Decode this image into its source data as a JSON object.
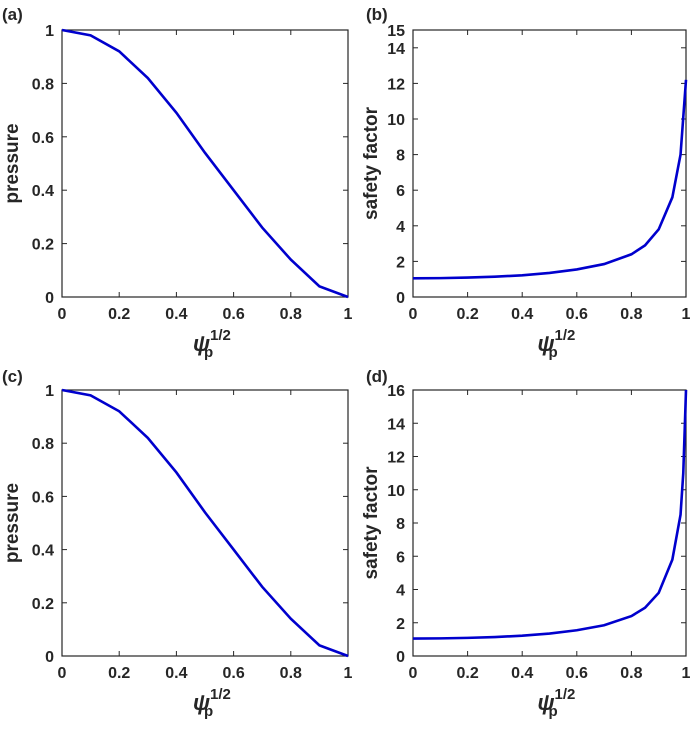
{
  "chart_data": [
    {
      "panel_label": "(a)",
      "type": "line",
      "ylabel": "pressure",
      "xlabel": "ψ",
      "xlabel_sub": "p",
      "xlabel_sup": "1/2",
      "xlim": [
        0,
        1
      ],
      "ylim": [
        0,
        1
      ],
      "xticks": [
        "0",
        "0.2",
        "0.4",
        "0.6",
        "0.8",
        "1"
      ],
      "yticks": [
        "0",
        "0.2",
        "0.4",
        "0.6",
        "0.8",
        "1"
      ],
      "x": [
        0,
        0.1,
        0.2,
        0.3,
        0.4,
        0.5,
        0.6,
        0.7,
        0.8,
        0.9,
        1.0
      ],
      "y": [
        1.0,
        0.98,
        0.92,
        0.82,
        0.69,
        0.54,
        0.4,
        0.26,
        0.14,
        0.04,
        0.0
      ],
      "color": "#0000cd"
    },
    {
      "panel_label": "(b)",
      "type": "line",
      "ylabel": "safety factor",
      "xlabel": "ψ",
      "xlabel_sub": "p",
      "xlabel_sup": "1/2",
      "xlim": [
        0,
        1
      ],
      "ylim": [
        0,
        15
      ],
      "xticks": [
        "0",
        "0.2",
        "0.4",
        "0.6",
        "0.8",
        "1"
      ],
      "yticks": [
        "0",
        "2",
        "4",
        "6",
        "8",
        "10",
        "12",
        "14",
        "15"
      ],
      "x": [
        0,
        0.1,
        0.2,
        0.3,
        0.4,
        0.5,
        0.6,
        0.7,
        0.8,
        0.85,
        0.9,
        0.95,
        0.98,
        1.0
      ],
      "y": [
        1.05,
        1.06,
        1.09,
        1.14,
        1.22,
        1.35,
        1.55,
        1.85,
        2.4,
        2.9,
        3.8,
        5.6,
        8.0,
        12.2
      ],
      "color": "#0000cd"
    },
    {
      "panel_label": "(c)",
      "type": "line",
      "ylabel": "pressure",
      "xlabel": "ψ",
      "xlabel_sub": "p",
      "xlabel_sup": "1/2",
      "xlim": [
        0,
        1
      ],
      "ylim": [
        0,
        1
      ],
      "xticks": [
        "0",
        "0.2",
        "0.4",
        "0.6",
        "0.8",
        "1"
      ],
      "yticks": [
        "0",
        "0.2",
        "0.4",
        "0.6",
        "0.8",
        "1"
      ],
      "x": [
        0,
        0.1,
        0.2,
        0.3,
        0.4,
        0.5,
        0.6,
        0.7,
        0.8,
        0.9,
        1.0
      ],
      "y": [
        1.0,
        0.98,
        0.92,
        0.82,
        0.69,
        0.54,
        0.4,
        0.26,
        0.14,
        0.04,
        0.0
      ],
      "color": "#0000cd"
    },
    {
      "panel_label": "(d)",
      "type": "line",
      "ylabel": "safety factor",
      "xlabel": "ψ",
      "xlabel_sub": "p",
      "xlabel_sup": "1/2",
      "xlim": [
        0,
        1
      ],
      "ylim": [
        0,
        16
      ],
      "xticks": [
        "0",
        "0.2",
        "0.4",
        "0.6",
        "0.8",
        "1"
      ],
      "yticks": [
        "0",
        "2",
        "4",
        "6",
        "8",
        "10",
        "12",
        "14",
        "16"
      ],
      "x": [
        0,
        0.1,
        0.2,
        0.3,
        0.4,
        0.5,
        0.6,
        0.7,
        0.8,
        0.85,
        0.9,
        0.95,
        0.98,
        0.99,
        1.0
      ],
      "y": [
        1.05,
        1.06,
        1.09,
        1.14,
        1.22,
        1.35,
        1.55,
        1.85,
        2.4,
        2.9,
        3.8,
        5.8,
        8.5,
        11.0,
        16.0
      ],
      "color": "#0000cd"
    }
  ]
}
